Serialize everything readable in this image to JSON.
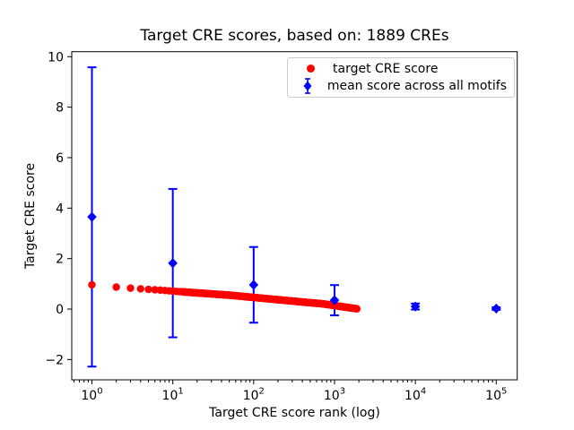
{
  "figure": {
    "title": "Target CRE scores, based on: 1889 CREs",
    "background": "#ffffff"
  },
  "axes": {
    "xlabel": "Target CRE score rank (log)",
    "ylabel": "Target CRE score",
    "x_scale": "log",
    "x_tick_exponents": [
      0,
      1,
      2,
      3,
      4,
      5
    ],
    "y_ticks": [
      -2,
      0,
      2,
      4,
      6,
      8,
      10
    ],
    "xlim_log10": [
      -0.25,
      5.26
    ],
    "ylim": [
      -2.86,
      10.19
    ],
    "grid": false,
    "spine_color": "#000000"
  },
  "legend": {
    "position": "upper right inside axes",
    "entries": [
      {
        "label": "target CRE score",
        "marker": "circle",
        "color": "#ff0000"
      },
      {
        "label": "mean score across all motifs",
        "marker": "diamond-with-errorbar",
        "color": "#0000ff"
      }
    ]
  },
  "chart_data": {
    "type": "scatter",
    "title": "Target CRE scores, based on: 1889 CREs",
    "xlabel": "Target CRE score rank (log)",
    "ylabel": "Target CRE score",
    "x_scale": "log",
    "xlim": [
      0.56,
      182000
    ],
    "ylim": [
      -2.86,
      10.19
    ],
    "legend_position": "upper right",
    "series": [
      {
        "name": "target CRE score",
        "marker": "circle",
        "color": "#ff0000",
        "n_points": 1889,
        "note": "1889 points, ranks 1-1889; dense overlapping dots form a band; anchor values read from figure, log-interpolated between anchors",
        "anchors": {
          "rank": [
            1,
            2,
            3,
            4,
            5,
            7,
            10,
            20,
            50,
            100,
            200,
            400,
            700,
            1000,
            1400,
            1889
          ],
          "score": [
            0.96,
            0.87,
            0.83,
            0.8,
            0.78,
            0.75,
            0.71,
            0.64,
            0.55,
            0.46,
            0.37,
            0.28,
            0.21,
            0.14,
            0.07,
            0.01
          ]
        }
      },
      {
        "name": "mean score across all motifs",
        "marker": "diamond",
        "color": "#0000ff",
        "x": [
          1,
          10,
          100,
          1000,
          10000,
          100000
        ],
        "y": [
          3.65,
          1.82,
          0.96,
          0.35,
          0.1,
          0.02
        ],
        "yerr": [
          5.93,
          2.94,
          1.5,
          0.6,
          0.12,
          0.05
        ]
      }
    ]
  }
}
